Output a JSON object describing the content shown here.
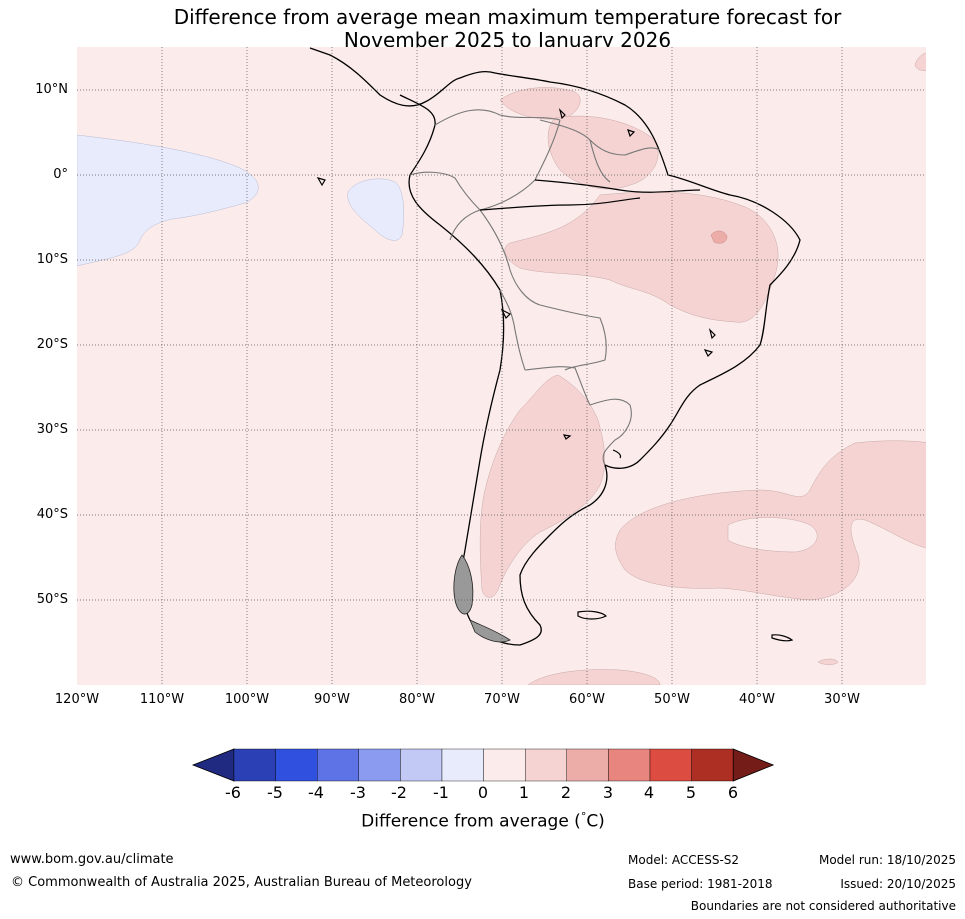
{
  "title": {
    "line1": "Difference from average mean maximum temperature forecast for",
    "line2": "November 2025 to January 2026"
  },
  "latitude_labels": [
    "10°N",
    "0°",
    "10°S",
    "20°S",
    "30°S",
    "40°S",
    "50°S"
  ],
  "longitude_labels": [
    "120°W",
    "110°W",
    "100°W",
    "90°W",
    "80°W",
    "70°W",
    "60°W",
    "50°W",
    "40°W",
    "30°W"
  ],
  "colorbar": {
    "ticks": [
      "-6",
      "-5",
      "-4",
      "-3",
      "-2",
      "-1",
      "0",
      "1",
      "2",
      "3",
      "4",
      "5",
      "6"
    ],
    "colors": [
      "#1f2a80",
      "#2a40b4",
      "#3050e0",
      "#5e73e6",
      "#8b9bef",
      "#c1c9f4",
      "#e8ebfc",
      "#fbebea",
      "#f4d3d2",
      "#ecaca8",
      "#e8857e",
      "#dc4c40",
      "#ad2e22",
      "#731c18"
    ],
    "label": "Difference from average (",
    "unit_degree": "°",
    "unit_suffix": "C)"
  },
  "footer": {
    "website": "www.bom.gov.au/climate",
    "copyright": "© Commonwealth of Australia 2025, Australian Bureau of Meteorology",
    "model": "Model: ACCESS-S2",
    "base_period": "Base period: 1981-2018",
    "model_run": "Model run: 18/10/2025",
    "issued": "Issued: 20/10/2025",
    "disclaimer": "Boundaries are not considered authoritative"
  }
}
